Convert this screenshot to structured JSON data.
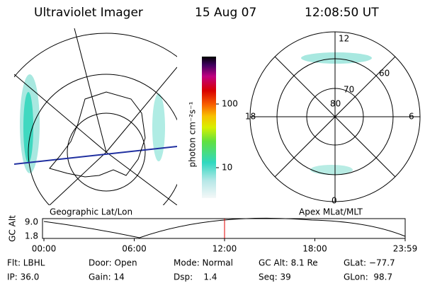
{
  "header": {
    "title": "Ultraviolet Imager",
    "date": "15 Aug 07",
    "time": "12:08:50 UT"
  },
  "left_panel": {
    "label": "Geographic Lat/Lon"
  },
  "right_panel": {
    "label": "Apex MLat/MLT",
    "mlt_labels": [
      "12",
      "18",
      "6",
      "0"
    ],
    "lat_labels": [
      "60",
      "70",
      "80"
    ]
  },
  "colorbar": {
    "label": "photon cm⁻²s⁻¹",
    "ticks": [
      "100",
      "10"
    ]
  },
  "altitude_plot": {
    "ylabel": "GC Alt",
    "yticks": [
      "9.0",
      "1.8"
    ],
    "xticks": [
      "00:00",
      "06:00",
      "12:00",
      "18:00",
      "23:59"
    ]
  },
  "info": {
    "rows": [
      [
        "Flt: LBHL",
        "Door: Open",
        "Mode: Normal",
        "GC Alt: 8.1 Re",
        "GLat: −77.7"
      ],
      [
        "IP: 36.0",
        "Gain: 14",
        "Dsp:    1.4",
        "Seq: 39",
        "GLon:  98.7"
      ]
    ]
  }
}
